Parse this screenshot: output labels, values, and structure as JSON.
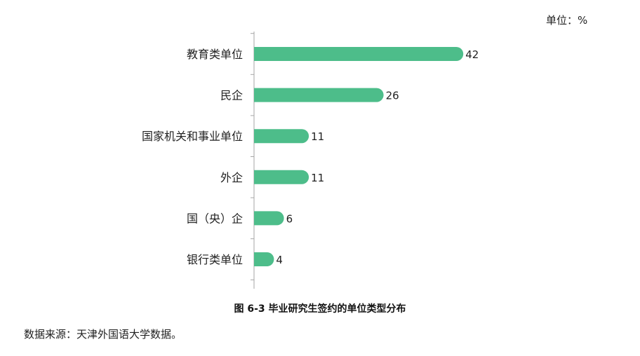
{
  "chart_data": {
    "type": "bar",
    "orientation": "horizontal",
    "unit_label": "单位：%",
    "categories": [
      "教育类单位",
      "民企",
      "国家机关和事业单位",
      "外企",
      "国（央）企",
      "银行类单位"
    ],
    "values": [
      42,
      26,
      11,
      11,
      6,
      4
    ],
    "bar_color": "#4dbd8a",
    "caption": "图 6-3 毕业研究生签约的单位类型分布",
    "source": "数据来源：天津外国语大学数据。"
  }
}
